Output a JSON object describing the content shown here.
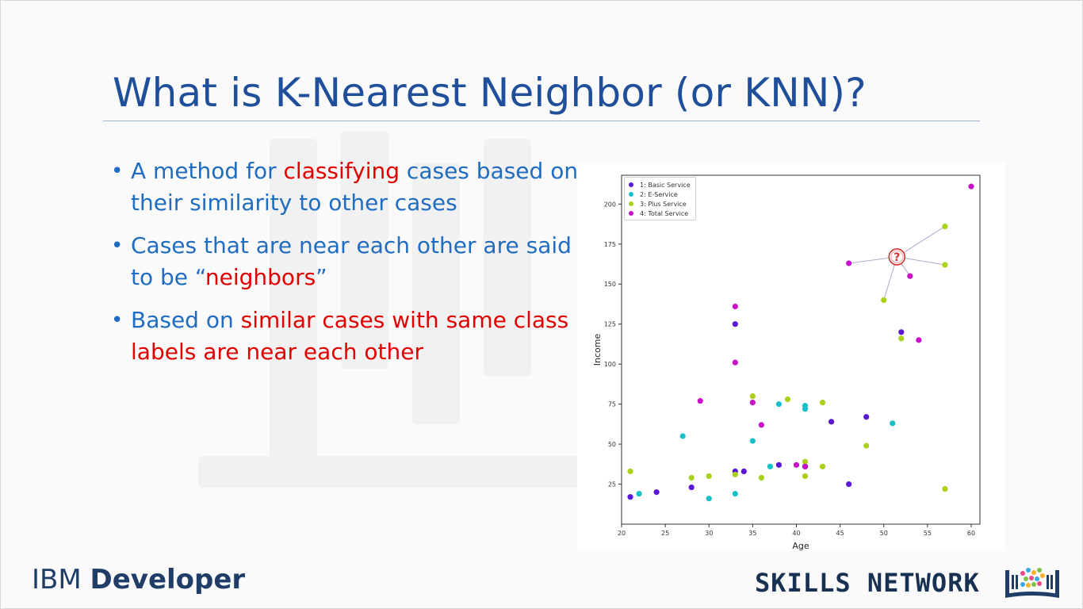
{
  "slide": {
    "title": "What is K-Nearest Neighbor (or KNN)?",
    "bullets": [
      {
        "parts": [
          {
            "text": "A method for ",
            "highlight": false
          },
          {
            "text": "classifying",
            "highlight": true
          },
          {
            "text": " cases based on their similarity to other cases",
            "highlight": false
          }
        ]
      },
      {
        "parts": [
          {
            "text": "Cases that are near each other are said to be “",
            "highlight": false
          },
          {
            "text": "neighbors",
            "highlight": true
          },
          {
            "text": "”",
            "highlight": false
          }
        ]
      },
      {
        "parts": [
          {
            "text": "Based on ",
            "highlight": false
          },
          {
            "text": "similar cases with same class labels are near each other",
            "highlight": true
          }
        ]
      }
    ]
  },
  "branding": {
    "ibm_prefix": "IBM",
    "ibm_bold": "Developer",
    "skills_network": "SKILLS NETWORK"
  },
  "colors": {
    "title": "#1f4e9a",
    "bullet_text": "#1f6cc0",
    "highlight": "#e00000",
    "basic": "#5b16d6",
    "eservice": "#1ac0c8",
    "plus": "#a9d11a",
    "total": "#c812c8"
  },
  "chart_data": {
    "type": "scatter",
    "xlabel": "Age",
    "ylabel": "Income",
    "xlim": [
      20,
      61
    ],
    "ylim": [
      0,
      218
    ],
    "xticks": [
      20,
      25,
      30,
      35,
      40,
      45,
      50,
      55,
      60
    ],
    "yticks": [
      25,
      50,
      75,
      100,
      125,
      150,
      175,
      200
    ],
    "grid": false,
    "legend_position": "top-left",
    "series": [
      {
        "name": "1: Basic Service",
        "color": "#5b16d6",
        "points": [
          [
            21,
            17
          ],
          [
            24,
            20
          ],
          [
            28,
            23
          ],
          [
            33,
            125
          ],
          [
            33,
            33
          ],
          [
            34,
            33
          ],
          [
            38,
            37
          ],
          [
            41,
            36
          ],
          [
            44,
            64
          ],
          [
            46,
            25
          ],
          [
            48,
            67
          ],
          [
            52,
            120
          ]
        ]
      },
      {
        "name": "2: E-Service",
        "color": "#1ac0c8",
        "points": [
          [
            22,
            19
          ],
          [
            27,
            55
          ],
          [
            30,
            16
          ],
          [
            33,
            19
          ],
          [
            35,
            52
          ],
          [
            37,
            36
          ],
          [
            38,
            75
          ],
          [
            41,
            72
          ],
          [
            41,
            74
          ],
          [
            51,
            63
          ]
        ]
      },
      {
        "name": "3: Plus Service",
        "color": "#a9d11a",
        "points": [
          [
            21,
            33
          ],
          [
            28,
            29
          ],
          [
            30,
            30
          ],
          [
            33,
            31
          ],
          [
            35,
            80
          ],
          [
            36,
            29
          ],
          [
            39,
            78
          ],
          [
            41,
            30
          ],
          [
            41,
            39
          ],
          [
            43,
            36
          ],
          [
            43,
            76
          ],
          [
            48,
            49
          ],
          [
            50,
            140
          ],
          [
            52,
            116
          ],
          [
            57,
            186
          ],
          [
            57,
            162
          ],
          [
            57,
            22
          ]
        ]
      },
      {
        "name": "4: Total Service",
        "color": "#c812c8",
        "points": [
          [
            29,
            77
          ],
          [
            33,
            136
          ],
          [
            33,
            101
          ],
          [
            35,
            76
          ],
          [
            36,
            62
          ],
          [
            40,
            37
          ],
          [
            41,
            36
          ],
          [
            46,
            163
          ],
          [
            53,
            155
          ],
          [
            54,
            115
          ],
          [
            60,
            211
          ]
        ]
      }
    ],
    "query_point": {
      "x": 51.5,
      "y": 167,
      "label": "?",
      "neighbors": [
        [
          46,
          163
        ],
        [
          53,
          155
        ],
        [
          50,
          140
        ],
        [
          57,
          162
        ],
        [
          57,
          186
        ]
      ]
    }
  }
}
